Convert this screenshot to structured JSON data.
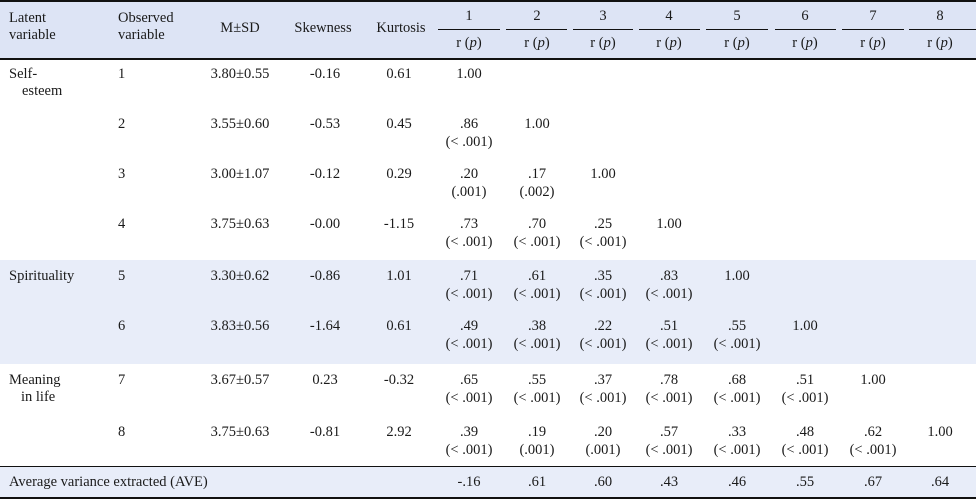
{
  "header": {
    "latent_variable": "Latent variable",
    "observed_variable": "Observed variable",
    "msd": "M±SD",
    "skewness": "Skewness",
    "kurtosis": "Kurtosis",
    "col_numbers": [
      "1",
      "2",
      "3",
      "4",
      "5",
      "6",
      "7",
      "8"
    ],
    "sub_r": "r (",
    "sub_p": "p",
    "sub_close": ")"
  },
  "groups": [
    {
      "label_lines": [
        "Self-",
        "esteem"
      ]
    },
    {
      "label_lines": [
        "Spirituality"
      ]
    },
    {
      "label_lines": [
        "Meaning",
        "in life"
      ]
    }
  ],
  "rows": [
    {
      "obs": "1",
      "msd": "3.80±0.55",
      "skew": "-0.16",
      "kurt": "0.61",
      "cells": [
        [
          "1.00",
          ""
        ]
      ]
    },
    {
      "obs": "2",
      "msd": "3.55±0.60",
      "skew": "-0.53",
      "kurt": "0.45",
      "cells": [
        [
          ".86",
          "(< .001)"
        ],
        [
          "1.00",
          ""
        ]
      ]
    },
    {
      "obs": "3",
      "msd": "3.00±1.07",
      "skew": "-0.12",
      "kurt": "0.29",
      "cells": [
        [
          ".20",
          "(.001)"
        ],
        [
          ".17",
          "(.002)"
        ],
        [
          "1.00",
          ""
        ]
      ]
    },
    {
      "obs": "4",
      "msd": "3.75±0.63",
      "skew": "-0.00",
      "kurt": "-1.15",
      "cells": [
        [
          ".73",
          "(< .001)"
        ],
        [
          ".70",
          "(< .001)"
        ],
        [
          ".25",
          "(< .001)"
        ],
        [
          "1.00",
          ""
        ]
      ]
    },
    {
      "obs": "5",
      "msd": "3.30±0.62",
      "skew": "-0.86",
      "kurt": "1.01",
      "cells": [
        [
          ".71",
          "(< .001)"
        ],
        [
          ".61",
          "(< .001)"
        ],
        [
          ".35",
          "(< .001)"
        ],
        [
          ".83",
          "(< .001)"
        ],
        [
          "1.00",
          ""
        ]
      ]
    },
    {
      "obs": "6",
      "msd": "3.83±0.56",
      "skew": "-1.64",
      "kurt": "0.61",
      "cells": [
        [
          ".49",
          "(< .001)"
        ],
        [
          ".38",
          "(< .001)"
        ],
        [
          ".22",
          "(< .001)"
        ],
        [
          ".51",
          "(< .001)"
        ],
        [
          ".55",
          "(< .001)"
        ],
        [
          "1.00",
          ""
        ]
      ]
    },
    {
      "obs": "7",
      "msd": "3.67±0.57",
      "skew": "0.23",
      "kurt": "-0.32",
      "cells": [
        [
          ".65",
          "(< .001)"
        ],
        [
          ".55",
          "(< .001)"
        ],
        [
          ".37",
          "(< .001)"
        ],
        [
          ".78",
          "(< .001)"
        ],
        [
          ".68",
          "(< .001)"
        ],
        [
          ".51",
          "(< .001)"
        ],
        [
          "1.00",
          ""
        ]
      ]
    },
    {
      "obs": "8",
      "msd": "3.75±0.63",
      "skew": "-0.81",
      "kurt": "2.92",
      "cells": [
        [
          ".39",
          "(< .001)"
        ],
        [
          ".19",
          "(.001)"
        ],
        [
          ".20",
          "(.001)"
        ],
        [
          ".57",
          "(< .001)"
        ],
        [
          ".33",
          "(< .001)"
        ],
        [
          ".48",
          "(< .001)"
        ],
        [
          ".62",
          "(< .001)"
        ],
        [
          "1.00",
          ""
        ]
      ]
    }
  ],
  "ave": {
    "label": "Average variance extracted (AVE)",
    "values": [
      "-.16",
      ".61",
      ".60",
      ".43",
      ".46",
      ".55",
      ".67",
      ".64"
    ]
  },
  "colors": {
    "header_bg": "#dde4f5",
    "band_bg": "#e8edf9",
    "rule": "#111111"
  }
}
